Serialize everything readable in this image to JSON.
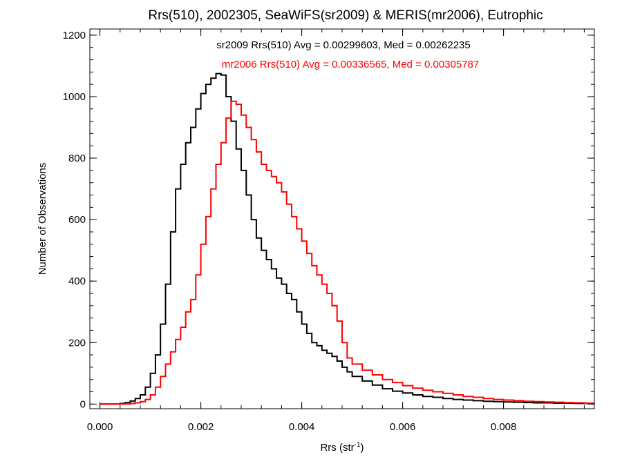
{
  "chart_data": {
    "type": "line",
    "title": "Rrs(510), 2002305, SeaWiFS(sr2009) & MERIS(mr2006), Eutrophic",
    "xlabel": "Rrs (str",
    "xlabel_sup": "-1",
    "xlabel_close": ")",
    "ylabel": "Number of Observations",
    "xlim": [
      -0.0002,
      0.0098
    ],
    "ylim": [
      -15,
      1220
    ],
    "xticks": [
      0.0,
      0.002,
      0.004,
      0.006,
      0.008
    ],
    "xtick_labels": [
      "0.000",
      "0.002",
      "0.004",
      "0.006",
      "0.008"
    ],
    "yticks": [
      0,
      200,
      400,
      600,
      800,
      1000,
      1200
    ],
    "ytick_labels": [
      "0",
      "200",
      "400",
      "600",
      "800",
      "1000",
      "1200"
    ],
    "grid": false,
    "series": [
      {
        "name": "sr2009",
        "color": "#000000",
        "stats_text": "sr2009 Rrs(510) Avg = 0.00299603, Med = 0.00262235",
        "x": [
          0.0,
          0.0002,
          0.0004,
          0.0005,
          0.0006,
          0.0007,
          0.0008,
          0.0009,
          0.001,
          0.0011,
          0.0012,
          0.0013,
          0.0014,
          0.0015,
          0.0016,
          0.0017,
          0.0018,
          0.0019,
          0.002,
          0.0021,
          0.0022,
          0.0023,
          0.0024,
          0.0025,
          0.0026,
          0.0027,
          0.0028,
          0.0029,
          0.003,
          0.0031,
          0.0032,
          0.0033,
          0.0034,
          0.0035,
          0.0036,
          0.0037,
          0.0038,
          0.0039,
          0.004,
          0.0041,
          0.0042,
          0.0043,
          0.0044,
          0.0045,
          0.0046,
          0.0047,
          0.0048,
          0.0049,
          0.005,
          0.0052,
          0.0054,
          0.0056,
          0.0058,
          0.006,
          0.0062,
          0.0064,
          0.0066,
          0.0068,
          0.007,
          0.0072,
          0.0074,
          0.0076,
          0.0078,
          0.008,
          0.0082,
          0.0084,
          0.0086,
          0.0088,
          0.009,
          0.0092,
          0.0094,
          0.0096,
          0.0098
        ],
        "y": [
          0,
          0,
          2,
          5,
          10,
          18,
          30,
          55,
          100,
          160,
          260,
          390,
          560,
          700,
          780,
          850,
          900,
          960,
          1010,
          1040,
          1060,
          1075,
          1070,
          1000,
          920,
          830,
          760,
          680,
          600,
          540,
          500,
          470,
          440,
          410,
          390,
          360,
          340,
          300,
          260,
          230,
          200,
          190,
          175,
          165,
          155,
          140,
          120,
          105,
          90,
          75,
          62,
          50,
          42,
          36,
          30,
          25,
          22,
          18,
          15,
          13,
          11,
          9,
          8,
          7,
          6,
          5,
          4,
          4,
          3,
          3,
          2,
          2,
          2
        ]
      },
      {
        "name": "mr2006",
        "color": "#ff0000",
        "stats_text": "mr2006 Rrs(510) Avg = 0.00336565, Med = 0.00305787",
        "x": [
          0.0,
          0.0002,
          0.0004,
          0.0005,
          0.0006,
          0.0007,
          0.0008,
          0.0009,
          0.001,
          0.0011,
          0.0012,
          0.0013,
          0.0014,
          0.0015,
          0.0016,
          0.0017,
          0.0018,
          0.0019,
          0.002,
          0.0021,
          0.0022,
          0.0023,
          0.0024,
          0.0025,
          0.0026,
          0.0027,
          0.0028,
          0.0029,
          0.003,
          0.0031,
          0.0032,
          0.0033,
          0.0034,
          0.0035,
          0.0036,
          0.0037,
          0.0038,
          0.0039,
          0.004,
          0.0041,
          0.0042,
          0.0043,
          0.0044,
          0.0045,
          0.0046,
          0.0047,
          0.0048,
          0.0049,
          0.005,
          0.0052,
          0.0054,
          0.0056,
          0.0058,
          0.006,
          0.0062,
          0.0064,
          0.0066,
          0.0068,
          0.007,
          0.0072,
          0.0074,
          0.0076,
          0.0078,
          0.008,
          0.0082,
          0.0084,
          0.0086,
          0.0088,
          0.009,
          0.0092,
          0.0094,
          0.0096,
          0.0098
        ],
        "y": [
          0,
          0,
          0,
          0,
          2,
          4,
          8,
          15,
          30,
          55,
          90,
          130,
          170,
          210,
          250,
          300,
          340,
          420,
          520,
          610,
          700,
          780,
          850,
          930,
          985,
          975,
          940,
          900,
          860,
          820,
          780,
          760,
          740,
          720,
          690,
          650,
          610,
          570,
          530,
          490,
          450,
          420,
          390,
          360,
          320,
          270,
          200,
          150,
          130,
          110,
          95,
          80,
          70,
          60,
          52,
          45,
          40,
          35,
          30,
          25,
          22,
          18,
          15,
          13,
          11,
          9,
          8,
          7,
          6,
          5,
          4,
          3,
          3
        ]
      }
    ]
  }
}
